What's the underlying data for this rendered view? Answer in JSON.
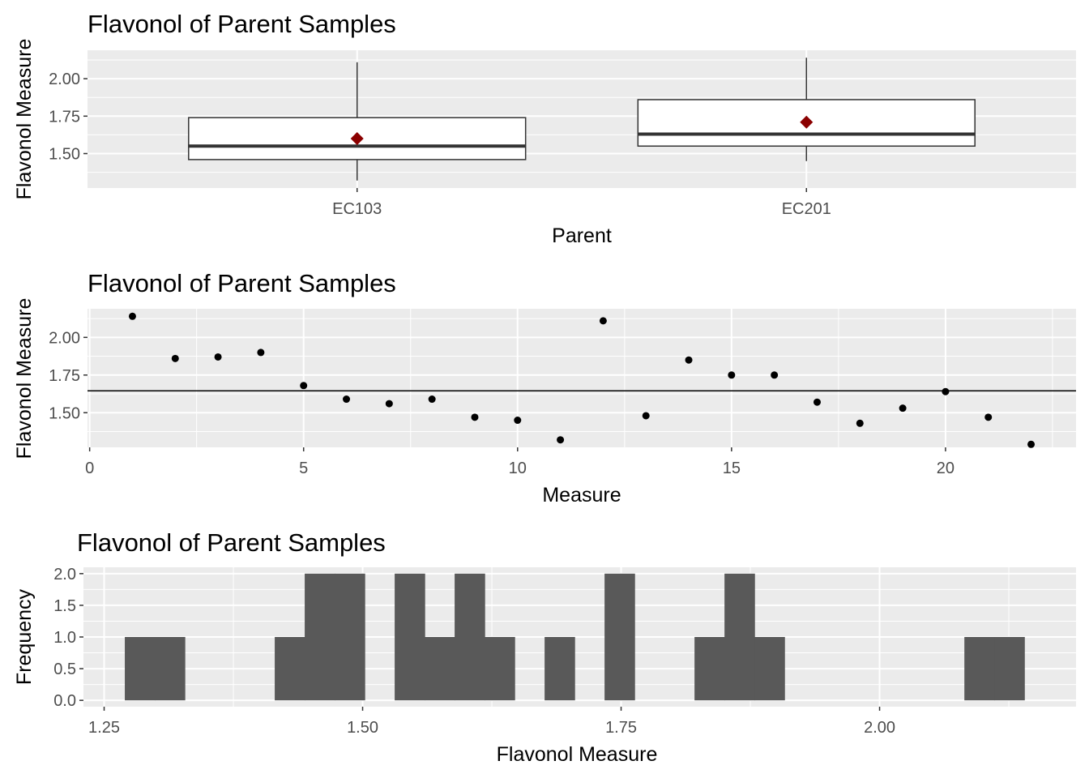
{
  "chart_data": [
    {
      "type": "box",
      "title": "Flavonol of Parent Samples",
      "xlabel": "Parent",
      "ylabel": "Flavonol Measure",
      "categories": [
        "EC103",
        "EC201"
      ],
      "boxes": [
        {
          "category": "EC103",
          "min": 1.32,
          "q1": 1.46,
          "median": 1.55,
          "q3": 1.74,
          "max": 2.11,
          "mean": 1.6
        },
        {
          "category": "EC201",
          "min": 1.45,
          "q1": 1.55,
          "median": 1.63,
          "q3": 1.86,
          "max": 2.14,
          "mean": 1.71
        }
      ],
      "mean_marker_color": "#8B0000",
      "ylim": [
        1.27,
        2.19
      ],
      "yticks": [
        1.5,
        1.75,
        2.0
      ],
      "ytick_labels": [
        "1.50",
        "1.75",
        "2.00"
      ],
      "grid": true
    },
    {
      "type": "scatter",
      "title": "Flavonol of Parent Samples",
      "xlabel": "Measure",
      "ylabel": "Flavonol Measure",
      "x": [
        1,
        2,
        3,
        4,
        5,
        6,
        7,
        8,
        9,
        10,
        11,
        12,
        13,
        14,
        15,
        16,
        17,
        18,
        19,
        20,
        21,
        22
      ],
      "y": [
        2.14,
        1.86,
        1.87,
        1.9,
        1.68,
        1.59,
        1.56,
        1.59,
        1.47,
        1.45,
        1.32,
        2.11,
        1.48,
        1.85,
        1.75,
        1.75,
        1.57,
        1.43,
        1.53,
        1.64,
        1.47,
        1.29
      ],
      "hline": 1.645,
      "xlim": [
        -0.05,
        23.05
      ],
      "ylim": [
        1.27,
        2.19
      ],
      "xticks": [
        0,
        5,
        10,
        15,
        20
      ],
      "xtick_labels": [
        "0",
        "5",
        "10",
        "15",
        "20"
      ],
      "yticks": [
        1.5,
        1.75,
        2.0
      ],
      "ytick_labels": [
        "1.50",
        "1.75",
        "2.00"
      ],
      "grid": true
    },
    {
      "type": "bar",
      "subtype": "histogram",
      "title": "Flavonol of Parent Samples",
      "xlabel": "Flavonol Measure",
      "ylabel": "Frequency",
      "bin_width": 0.029,
      "bins": [
        {
          "start": 1.27,
          "end": 1.299,
          "count": 1
        },
        {
          "start": 1.299,
          "end": 1.328,
          "count": 1
        },
        {
          "start": 1.415,
          "end": 1.444,
          "count": 1
        },
        {
          "start": 1.444,
          "end": 1.473,
          "count": 2
        },
        {
          "start": 1.473,
          "end": 1.502,
          "count": 2
        },
        {
          "start": 1.531,
          "end": 1.56,
          "count": 2
        },
        {
          "start": 1.56,
          "end": 1.589,
          "count": 1
        },
        {
          "start": 1.589,
          "end": 1.618,
          "count": 2
        },
        {
          "start": 1.618,
          "end": 1.647,
          "count": 1
        },
        {
          "start": 1.676,
          "end": 1.705,
          "count": 1
        },
        {
          "start": 1.734,
          "end": 1.763,
          "count": 2
        },
        {
          "start": 1.821,
          "end": 1.85,
          "count": 1
        },
        {
          "start": 1.85,
          "end": 1.879,
          "count": 2
        },
        {
          "start": 1.879,
          "end": 1.908,
          "count": 1
        },
        {
          "start": 2.082,
          "end": 2.111,
          "count": 1
        },
        {
          "start": 2.111,
          "end": 2.14,
          "count": 1
        }
      ],
      "xlim": [
        1.23,
        2.19
      ],
      "ylim": [
        -0.1,
        2.1
      ],
      "xticks": [
        1.25,
        1.5,
        1.75,
        2.0
      ],
      "xtick_labels": [
        "1.25",
        "1.50",
        "1.75",
        "2.00"
      ],
      "yticks": [
        0,
        0.5,
        1.0,
        1.5,
        2.0
      ],
      "ytick_labels": [
        "0.0",
        "0.5",
        "1.0",
        "1.5",
        "2.0"
      ],
      "bar_color": "#595959",
      "grid": true
    }
  ]
}
